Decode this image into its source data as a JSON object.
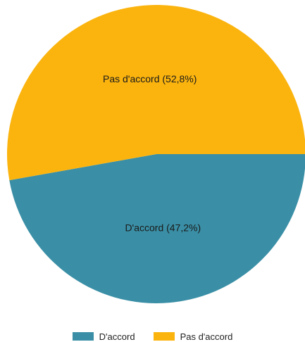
{
  "chart_data": {
    "type": "pie",
    "slices": [
      {
        "label": "D'accord",
        "value": 47.2,
        "display": "D'accord (47,2%)",
        "color": "#3a8fa6"
      },
      {
        "label": "Pas d'accord",
        "value": 52.8,
        "display": "Pas d'accord (52,8%)",
        "color": "#fbb40e"
      }
    ],
    "start_angle_deg": 0,
    "direction": "clockwise",
    "legend": {
      "position": "bottom",
      "items": [
        {
          "label": "D'accord",
          "color": "#3a8fa6"
        },
        {
          "label": "Pas d'accord",
          "color": "#fbb40e"
        }
      ]
    }
  }
}
